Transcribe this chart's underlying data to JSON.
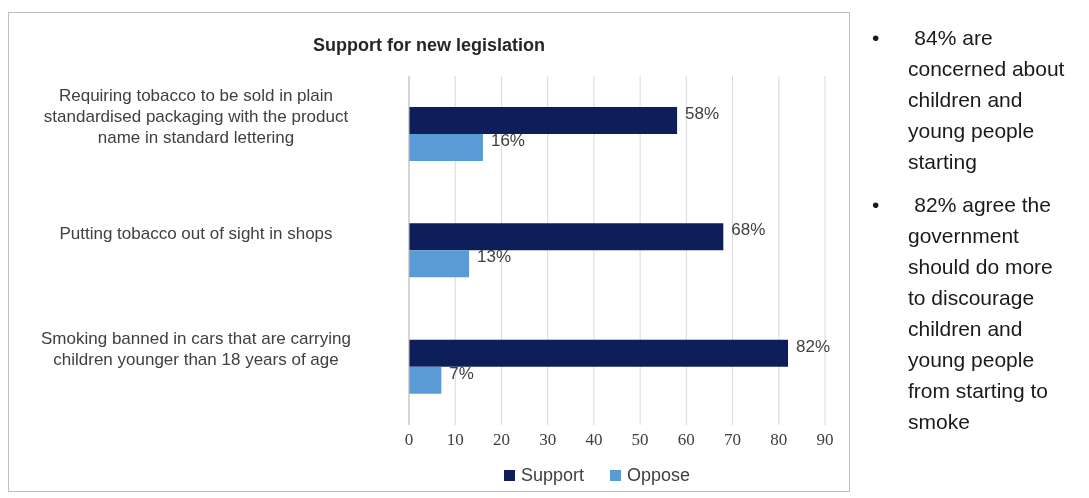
{
  "chart_data": {
    "type": "bar",
    "orientation": "horizontal",
    "title": "Support for new legislation",
    "categories": [
      "Requiring tobacco to be sold in plain standardised packaging with the product name in standard lettering",
      "Putting tobacco out of sight in shops",
      "Smoking banned in cars that are carrying children younger than 18 years of age"
    ],
    "series": [
      {
        "name": "Support",
        "color": "#0e1e5b",
        "values": [
          58,
          68,
          82
        ],
        "value_labels": [
          "58%",
          "68%",
          "82%"
        ]
      },
      {
        "name": "Oppose",
        "color": "#5b9bd5",
        "values": [
          16,
          13,
          7
        ],
        "value_labels": [
          "16%",
          "13%",
          "7%"
        ]
      }
    ],
    "xlim": [
      0,
      90
    ],
    "xticks": [
      0,
      10,
      20,
      30,
      40,
      50,
      60,
      70,
      80,
      90
    ],
    "grid": "x",
    "legend": "bottom",
    "annotations": [
      "• 84% are concerned about children and young people starting",
      "• 82% agree the government should do more to discourage children and young people from starting to smoke"
    ]
  }
}
